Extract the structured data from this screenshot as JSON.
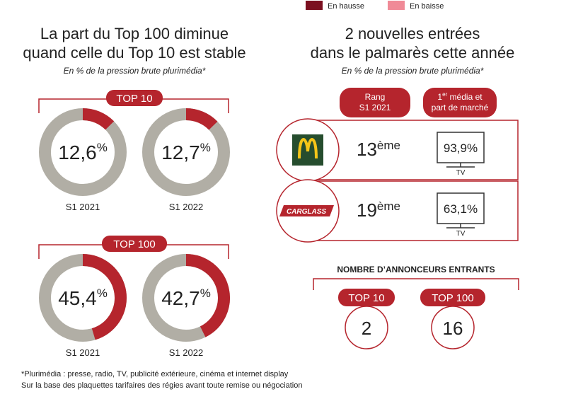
{
  "legend": [
    {
      "label": "En hausse",
      "color": "#7b1020"
    },
    {
      "label": "En baisse",
      "color": "#f08a97"
    }
  ],
  "left": {
    "title": [
      "La part du Top 100 diminue",
      "quand celle du Top 10 est stable"
    ],
    "subtitle": "En % de la pression brute plurimédia*",
    "groups": [
      {
        "label": "TOP 10",
        "donuts": [
          {
            "value": 12.6,
            "label": "12,6",
            "unit": "%",
            "period": "S1 2021"
          },
          {
            "value": 12.7,
            "label": "12,7",
            "unit": "%",
            "period": "S1 2022"
          }
        ]
      },
      {
        "label": "TOP 100",
        "donuts": [
          {
            "value": 45.4,
            "label": "45,4",
            "unit": "%",
            "period": "S1 2021"
          },
          {
            "value": 42.7,
            "label": "42,7",
            "unit": "%",
            "period": "S1 2022"
          }
        ]
      }
    ]
  },
  "right": {
    "title": [
      "2 nouvelles entrées",
      "dans le palmarès cette année"
    ],
    "subtitle": "En % de la pression brute plurimédia*",
    "headers": {
      "rank": [
        "Rang",
        "S1 2021"
      ],
      "media": {
        "prefix": "1",
        "sup": "er",
        "line1": " média et",
        "line2": "part de marché"
      }
    },
    "rows": [
      {
        "brand": null,
        "rank": "13",
        "suffix": "ème",
        "share": "93,9%",
        "medium": "TV"
      },
      {
        "brand": "CARGLASS",
        "rank": "19",
        "suffix": "ème",
        "share": "63,1%",
        "medium": "TV"
      }
    ],
    "counts": {
      "title": "NOMBRE D’ANNONCEURS ENTRANTS",
      "items": [
        {
          "label": "TOP 10",
          "value": "2"
        },
        {
          "label": "TOP 100",
          "value": "16"
        }
      ]
    }
  },
  "footnotes": [
    "*Plurimédia : presse, radio, TV, publicité extérieure, cinéma et internet display",
    "Sur la base des plaquettes tarifaires des régies avant toute remise ou négociation"
  ]
}
